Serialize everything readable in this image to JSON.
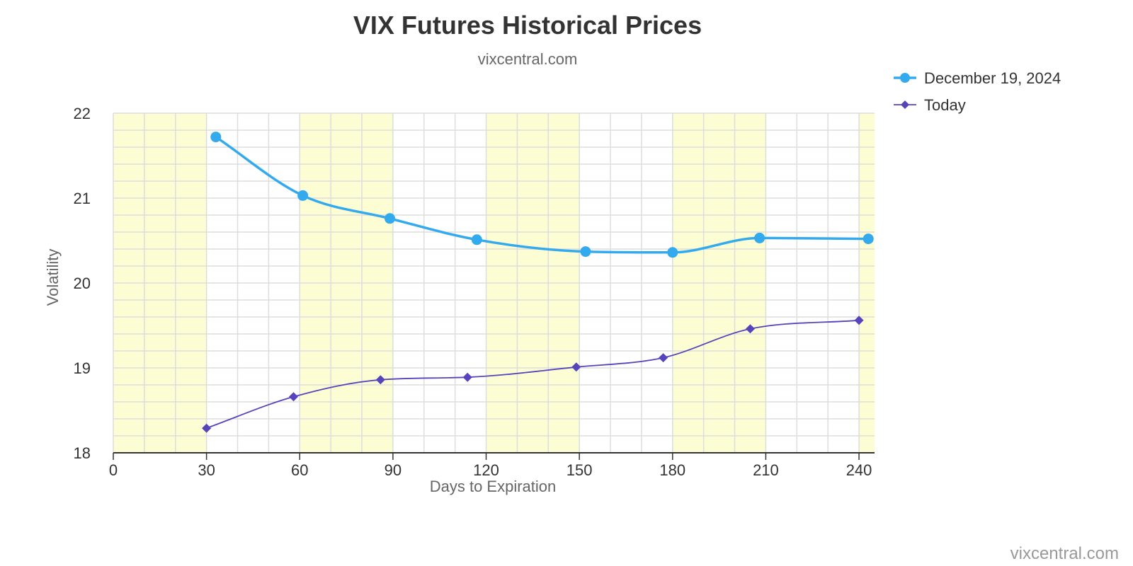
{
  "chart_data": {
    "type": "line",
    "title": "VIX Futures Historical Prices",
    "subtitle": "vixcentral.com",
    "xlabel": "Days to Expiration",
    "ylabel": "Volatility",
    "xlim": [
      0,
      245
    ],
    "ylim": [
      18,
      22
    ],
    "x_ticks": [
      0,
      30,
      60,
      90,
      120,
      150,
      180,
      210,
      240
    ],
    "y_ticks": [
      18,
      19,
      20,
      21,
      22
    ],
    "grid": true,
    "legend_position": "top-right",
    "shaded_bands": [
      [
        0,
        30
      ],
      [
        60,
        90
      ],
      [
        120,
        150
      ],
      [
        180,
        210
      ],
      [
        240,
        245
      ]
    ],
    "series": [
      {
        "name": "December 19, 2024",
        "color": "#33aaee",
        "marker": "circle",
        "x": [
          33,
          61,
          89,
          117,
          152,
          180,
          208,
          243
        ],
        "y": [
          21.72,
          21.03,
          20.76,
          20.51,
          20.37,
          20.36,
          20.53,
          20.52
        ]
      },
      {
        "name": "Today",
        "color": "#5544bb",
        "marker": "diamond",
        "x": [
          30,
          58,
          86,
          114,
          149,
          177,
          205,
          240
        ],
        "y": [
          18.29,
          18.66,
          18.86,
          18.89,
          19.01,
          19.12,
          19.46,
          19.56
        ]
      }
    ],
    "credit": "vixcentral.com"
  }
}
